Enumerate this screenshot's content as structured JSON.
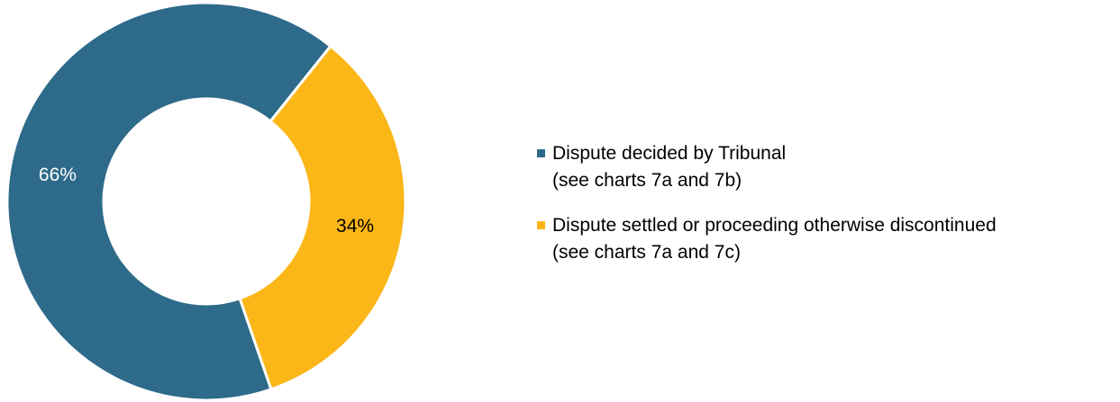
{
  "chart_data": {
    "type": "donut",
    "categories": [
      "Dispute decided by Tribunal\n(see charts 7a and 7b)",
      "Dispute settled or proceeding otherwise discontinued\n(see charts 7a and 7c)"
    ],
    "values": [
      66,
      34
    ],
    "value_labels": [
      "66%",
      "34%"
    ],
    "colors": [
      "#2e6a8a",
      "#fbb618"
    ],
    "label_colors": [
      "#ffffff",
      "#000000"
    ]
  }
}
